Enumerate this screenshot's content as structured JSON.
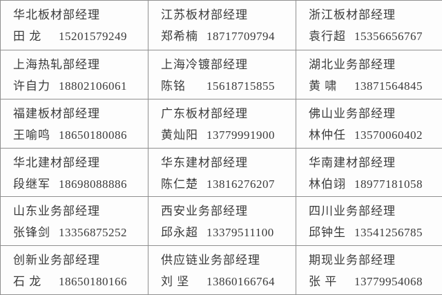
{
  "colors": {
    "border": "#8f8f8f",
    "text": "#3a3a3a",
    "background": "#ffffff"
  },
  "rows": [
    [
      {
        "title": "华北板材部经理",
        "name": "田 龙",
        "phone": "15201579249"
      },
      {
        "title": "江苏板材部经理",
        "name": "郑希楠",
        "phone": "18717709794"
      },
      {
        "title": "浙江板材部经理",
        "name": "袁行超",
        "phone": "15356656767"
      }
    ],
    [
      {
        "title": "上海热轧部经理",
        "name": "许自力",
        "phone": "18802106061"
      },
      {
        "title": "上海冷镀部经理",
        "name": "陈铭",
        "phone": "15618715855"
      },
      {
        "title": "湖北业务部经理",
        "name": "黄 啸",
        "phone": "13871564845"
      }
    ],
    [
      {
        "title": "福建板材部经理",
        "name": "王喻鸣",
        "phone": "18650180086"
      },
      {
        "title": "广东板材部经理",
        "name": "黄灿阳",
        "phone": "13779991900"
      },
      {
        "title": "佛山业务部经理",
        "name": "林仲任",
        "phone": "13570060402"
      }
    ],
    [
      {
        "title": "华北建材部经理",
        "name": "段继军",
        "phone": "18698088886"
      },
      {
        "title": "华东建材部经理",
        "name": "陈仁楚",
        "phone": "13816276207"
      },
      {
        "title": "华南建材部经理",
        "name": "林伯翊",
        "phone": "18977181058"
      }
    ],
    [
      {
        "title": "山东业务部经理",
        "name": "张锋剑",
        "phone": "13356875252"
      },
      {
        "title": "西安业务部经理",
        "name": "邱永超",
        "phone": "13379511100"
      },
      {
        "title": "四川业务部经理",
        "name": "邱钟生",
        "phone": "13541256785"
      }
    ],
    [
      {
        "title": "创新业务部经理",
        "name": "石 龙",
        "phone": "18650180166"
      },
      {
        "title": "供应链业务部经理",
        "name": "刘 坚",
        "phone": "13860166764"
      },
      {
        "title": "期现业务部经理",
        "name": "张 平",
        "phone": "13779954068"
      }
    ]
  ]
}
